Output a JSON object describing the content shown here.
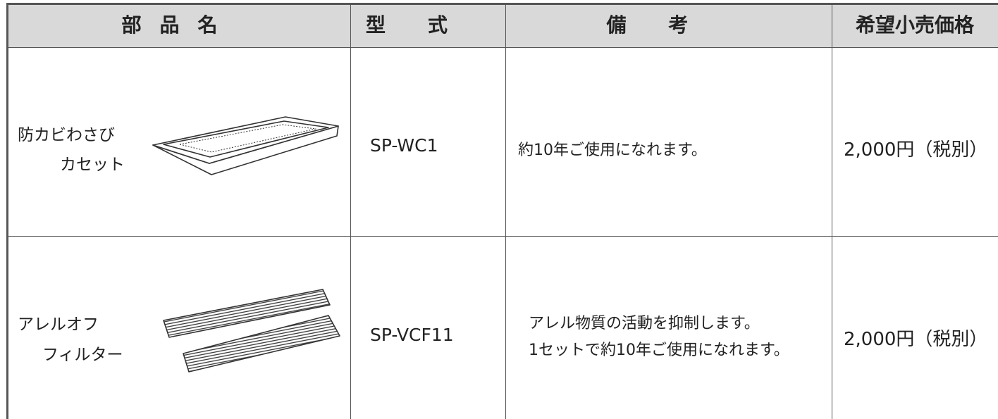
{
  "table": {
    "headers": [
      "部品名",
      "型式",
      "備考",
      "希望小売価格"
    ],
    "rows": [
      {
        "name": [
          "防カビわさび",
          "カセット"
        ],
        "model": "SP-WC1",
        "remarks": [
          "約10年ご使用になれます。"
        ],
        "price": "2,000円（税別）"
      },
      {
        "name": [
          "アレルオフ",
          "フィルター"
        ],
        "model": "SP-VCF11",
        "remarks": [
          "アレル物質の活動を抑制します。",
          "1セットで約10年ご使用になれます。"
        ],
        "price": "2,000円（税別）"
      }
    ]
  }
}
